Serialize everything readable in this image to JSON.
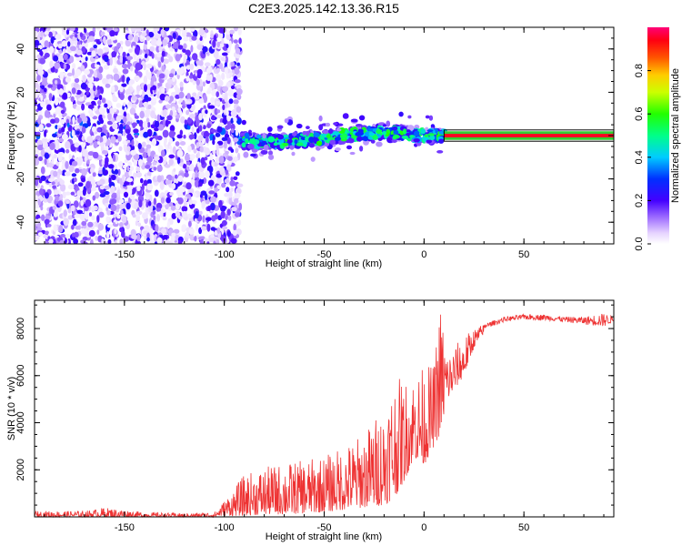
{
  "title": "C2E3.2025.142.13.36.R15",
  "chart_data": [
    {
      "type": "heatmap",
      "xlabel": "Height of straight line (km)",
      "ylabel": "Frequency (Hz)",
      "xlim": [
        -195,
        95
      ],
      "ylim": [
        -50,
        50
      ],
      "xticks": [
        -150,
        -100,
        -50,
        0,
        50
      ],
      "yticks": [
        -40,
        -20,
        0,
        20,
        40
      ],
      "colorbar": {
        "label": "Normalized spectral amplitude",
        "range": [
          0.0,
          1.0
        ],
        "ticks": [
          0.0,
          0.2,
          0.4,
          0.6,
          0.8
        ],
        "tick_labels": [
          "0.0",
          "0.2",
          "0.4",
          "0.6",
          "0.8"
        ],
        "colormap": "hsv-rainbow (white-lilac low, purple, blue, cyan, green, yellow, orange, red, pink high)"
      },
      "regions": [
        {
          "description": "broad noise scattered over all frequencies",
          "x_range": [
            -195,
            -92
          ],
          "y_range": [
            -50,
            50
          ],
          "amplitude": [
            0.02,
            0.25
          ]
        },
        {
          "description": "emerging carrier line, wandering near 0 Hz",
          "x_range": [
            -92,
            10
          ],
          "y_center": [
            -2,
            3
          ],
          "amplitude": [
            0.2,
            0.6
          ]
        },
        {
          "description": "strong stable carrier line",
          "x_range": [
            10,
            95
          ],
          "y_center": 0,
          "amplitude": [
            0.9,
            1.0
          ]
        }
      ],
      "line_center": [
        {
          "x": -92,
          "y": -2
        },
        {
          "x": -80,
          "y": -3
        },
        {
          "x": -60,
          "y": -2
        },
        {
          "x": -40,
          "y": 0
        },
        {
          "x": -20,
          "y": 2
        },
        {
          "x": -10,
          "y": 1
        },
        {
          "x": 0,
          "y": 0
        },
        {
          "x": 10,
          "y": 0
        },
        {
          "x": 95,
          "y": 0
        }
      ],
      "grid": false
    },
    {
      "type": "line",
      "xlabel": "Height of straight line (km)",
      "ylabel": "SNR (10 * v/v)",
      "xlim": [
        -195,
        95
      ],
      "ylim": [
        0,
        9200
      ],
      "xticks": [
        -150,
        -100,
        -50,
        0,
        50
      ],
      "yticks": [
        2000,
        4000,
        6000,
        8000
      ],
      "series": [
        {
          "color": "#ee3333",
          "envelope": [
            {
              "x": -195,
              "low": 0,
              "high": 250
            },
            {
              "x": -170,
              "low": 0,
              "high": 250
            },
            {
              "x": -160,
              "low": 0,
              "high": 400
            },
            {
              "x": -140,
              "low": 0,
              "high": 200
            },
            {
              "x": -120,
              "low": 0,
              "high": 150
            },
            {
              "x": -105,
              "low": 0,
              "high": 200
            },
            {
              "x": -100,
              "low": 50,
              "high": 700
            },
            {
              "x": -90,
              "low": 50,
              "high": 1800
            },
            {
              "x": -80,
              "low": 100,
              "high": 2100
            },
            {
              "x": -70,
              "low": 100,
              "high": 2300
            },
            {
              "x": -60,
              "low": 150,
              "high": 2400
            },
            {
              "x": -50,
              "low": 200,
              "high": 2600
            },
            {
              "x": -40,
              "low": 300,
              "high": 3000
            },
            {
              "x": -30,
              "low": 400,
              "high": 3600
            },
            {
              "x": -20,
              "low": 500,
              "high": 4800
            },
            {
              "x": -15,
              "low": 800,
              "high": 6000
            },
            {
              "x": -10,
              "low": 1500,
              "high": 5800
            },
            {
              "x": -5,
              "low": 2500,
              "high": 6100
            },
            {
              "x": 0,
              "low": 2200,
              "high": 6400
            },
            {
              "x": 5,
              "low": 3000,
              "high": 6500
            },
            {
              "x": 8,
              "low": 3500,
              "high": 9200
            },
            {
              "x": 12,
              "low": 5000,
              "high": 7000
            },
            {
              "x": 20,
              "low": 6000,
              "high": 7700
            },
            {
              "x": 25,
              "low": 7200,
              "high": 8000
            },
            {
              "x": 30,
              "low": 7800,
              "high": 8200
            },
            {
              "x": 40,
              "low": 8100,
              "high": 8500
            },
            {
              "x": 50,
              "low": 8200,
              "high": 8600
            },
            {
              "x": 60,
              "low": 8150,
              "high": 8600
            },
            {
              "x": 70,
              "low": 8100,
              "high": 8500
            },
            {
              "x": 80,
              "low": 7900,
              "high": 8500
            },
            {
              "x": 90,
              "low": 7600,
              "high": 8650
            },
            {
              "x": 95,
              "low": 8100,
              "high": 8500
            }
          ]
        }
      ],
      "grid": false
    }
  ]
}
